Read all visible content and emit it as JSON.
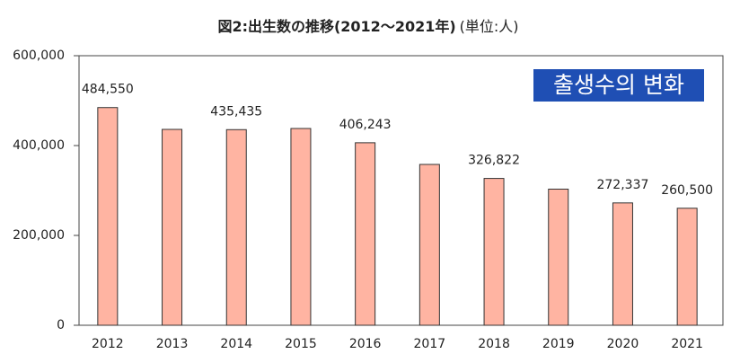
{
  "chart_data": {
    "type": "bar",
    "title": "図2:出生数の推移(2012～2021年)",
    "subtitle": "(単位:人)",
    "annotation": "출생수의 변화",
    "categories": [
      "2012",
      "2013",
      "2014",
      "2015",
      "2016",
      "2017",
      "2018",
      "2019",
      "2020",
      "2021"
    ],
    "values": [
      484550,
      436000,
      435435,
      438000,
      406243,
      358000,
      326822,
      303000,
      272337,
      260500
    ],
    "value_labels": [
      "484,550",
      null,
      "435,435",
      null,
      "406,243",
      null,
      "326,822",
      null,
      "272,337",
      "260,500"
    ],
    "color": "#ffb4a2",
    "ylim": [
      0,
      600000
    ],
    "yticks": [
      0,
      {
        "value": 200000,
        "label": "200,000"
      },
      {
        "value": 400000,
        "label": "400,000"
      },
      {
        "value": 600000,
        "label": "600,000"
      }
    ],
    "grid": false
  }
}
